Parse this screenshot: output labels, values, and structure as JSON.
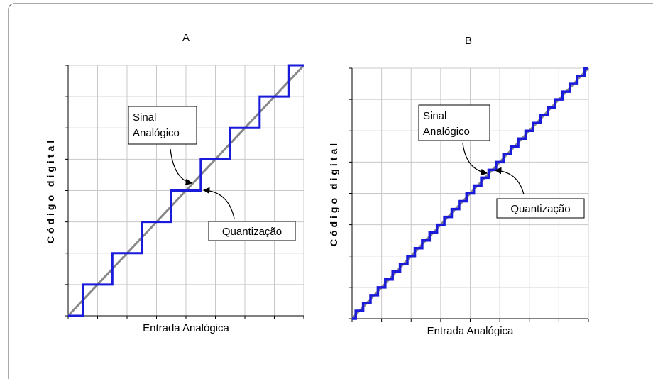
{
  "panels": [
    {
      "title": "A",
      "x_label": "Entrada Analógica",
      "y_label": "Código digital",
      "signal_label": [
        "Sinal",
        "Analógico"
      ],
      "quant_label": "Quantização"
    },
    {
      "title": "B",
      "x_label": "Entrada Analógica",
      "y_label": "Código digital",
      "signal_label": [
        "Sinal",
        "Analógico"
      ],
      "quant_label": "Quantização"
    }
  ]
}
